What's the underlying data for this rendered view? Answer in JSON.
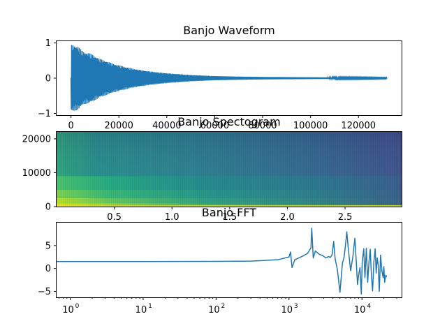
{
  "chart_data": [
    {
      "type": "line",
      "title": "Banjo Waveform",
      "xlabel": "",
      "ylabel": "",
      "xlim": [
        -6000,
        138000
      ],
      "ylim": [
        -1.05,
        1.05
      ],
      "x_ticks": [
        0,
        20000,
        40000,
        60000,
        80000,
        100000,
        120000
      ],
      "y_ticks": [
        -1,
        0,
        1
      ],
      "signal": {
        "start": 0,
        "end": 132000,
        "peak_amplitude": 0.95,
        "envelope": [
          [
            0,
            0.95
          ],
          [
            3000,
            0.9
          ],
          [
            5000,
            0.75
          ],
          [
            8000,
            0.7
          ],
          [
            12000,
            0.55
          ],
          [
            18000,
            0.4
          ],
          [
            25000,
            0.28
          ],
          [
            32000,
            0.2
          ],
          [
            40000,
            0.14
          ],
          [
            50000,
            0.09
          ],
          [
            60000,
            0.06
          ],
          [
            70000,
            0.045
          ],
          [
            80000,
            0.035
          ],
          [
            90000,
            0.03
          ],
          [
            100000,
            0.025
          ],
          [
            110000,
            0.02
          ],
          [
            120000,
            0.018
          ],
          [
            132000,
            0.012
          ]
        ]
      },
      "color": "#1f77b4",
      "grid": false
    },
    {
      "type": "heatmap",
      "title": "Banjo Spectogram",
      "xlabel": "",
      "ylabel": "",
      "xlim": [
        0,
        2.99
      ],
      "ylim": [
        0,
        22050
      ],
      "x_ticks": [
        0.5,
        1.0,
        1.5,
        2.0,
        2.5
      ],
      "y_ticks": [
        0,
        10000,
        20000
      ],
      "colormap": "viridis",
      "description_values": {
        "high_energy_band_below_hz": 1000,
        "energy_decays_with_time": true
      },
      "grid": false
    },
    {
      "type": "line",
      "title": "Banjo FFT",
      "xlabel": "",
      "ylabel": "",
      "x_scale": "log",
      "xlim": [
        0.65,
        35000
      ],
      "ylim": [
        -6.3,
        10.0
      ],
      "x_ticks": [
        1,
        10,
        100,
        1000,
        10000
      ],
      "y_ticks": [
        -5,
        0,
        5
      ],
      "series": [
        {
          "x": [
            0.65,
            1,
            10,
            100,
            300,
            700,
            1000,
            1050,
            1100,
            1200,
            1500,
            1800,
            2000,
            2050,
            2150,
            2300,
            2600,
            2900,
            3200,
            3500,
            3700,
            3900,
            4100,
            4300,
            4600,
            5000,
            5400,
            5700,
            6000,
            6200,
            6500,
            7000,
            7500,
            8000,
            8400,
            8700,
            9000,
            9400,
            9800,
            10100,
            10600,
            11000,
            11500,
            12000,
            12500,
            13000,
            13500,
            14000,
            14600,
            15200,
            15700,
            16200,
            16700,
            17300,
            18000,
            18800,
            19500,
            20000,
            20500,
            21200,
            22000
          ],
          "y": [
            1.5,
            1.5,
            1.5,
            1.55,
            1.6,
            1.9,
            2.5,
            3.6,
            0.2,
            1.9,
            2.6,
            3.3,
            4.5,
            8.8,
            2.3,
            3.8,
            3.1,
            2.8,
            2.3,
            2.6,
            2.4,
            3.0,
            5.9,
            2.0,
            -0.2,
            -5.2,
            1.1,
            2.5,
            5.6,
            8.0,
            4.4,
            -0.5,
            2.5,
            6.6,
            1.0,
            -3.5,
            -1.5,
            0.2,
            -5.6,
            1.5,
            4.3,
            -2.0,
            4.4,
            -3.0,
            1.5,
            4.2,
            -1.5,
            -4.9,
            1.5,
            4.3,
            -1.0,
            2.3,
            0.8,
            -5.0,
            2.9,
            -0.5,
            -2.0,
            0.4,
            -3.0,
            -1.5,
            -1.8
          ]
        }
      ],
      "color": "#1f77b4",
      "grid": false
    }
  ]
}
